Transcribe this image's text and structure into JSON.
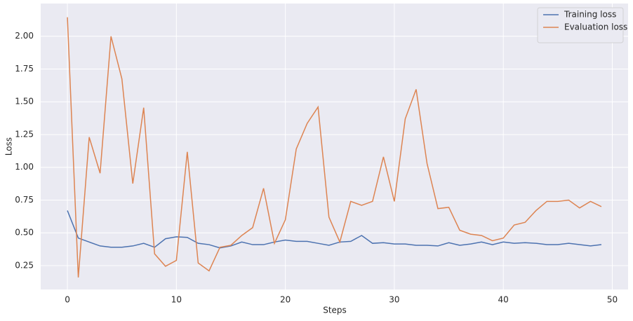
{
  "chart_data": {
    "type": "line",
    "xlabel": "Steps",
    "ylabel": "Loss",
    "x": [
      0,
      1,
      2,
      3,
      4,
      5,
      6,
      7,
      8,
      9,
      10,
      11,
      12,
      13,
      14,
      15,
      16,
      17,
      18,
      19,
      20,
      21,
      22,
      23,
      24,
      25,
      26,
      27,
      28,
      29,
      30,
      31,
      32,
      33,
      34,
      35,
      36,
      37,
      38,
      39,
      40,
      41,
      42,
      43,
      44,
      45,
      46,
      47,
      48,
      49
    ],
    "series": [
      {
        "name": "Training loss",
        "color": "#4c72b0",
        "values": [
          0.67,
          0.46,
          0.43,
          0.4,
          0.39,
          0.39,
          0.4,
          0.42,
          0.39,
          0.455,
          0.47,
          0.465,
          0.42,
          0.41,
          0.385,
          0.4,
          0.43,
          0.41,
          0.41,
          0.43,
          0.445,
          0.435,
          0.435,
          0.42,
          0.405,
          0.43,
          0.435,
          0.48,
          0.42,
          0.425,
          0.415,
          0.415,
          0.405,
          0.405,
          0.4,
          0.425,
          0.405,
          0.415,
          0.43,
          0.41,
          0.43,
          0.42,
          0.425,
          0.42,
          0.41,
          0.41,
          0.42,
          0.41,
          0.4,
          0.41
        ]
      },
      {
        "name": "Evaluation loss",
        "color": "#dd8452",
        "values": [
          2.145,
          0.16,
          1.23,
          0.955,
          2.0,
          1.675,
          0.876,
          1.455,
          0.34,
          0.245,
          0.29,
          1.118,
          0.27,
          0.21,
          0.39,
          0.405,
          0.48,
          0.54,
          0.84,
          0.42,
          0.6,
          1.14,
          1.335,
          1.46,
          0.62,
          0.43,
          0.74,
          0.71,
          0.74,
          1.08,
          0.74,
          1.37,
          1.595,
          1.03,
          0.685,
          0.695,
          0.52,
          0.49,
          0.48,
          0.44,
          0.46,
          0.56,
          0.58,
          0.67,
          0.74,
          0.74,
          0.75,
          0.69,
          0.74,
          0.7
        ]
      }
    ],
    "xlim": [
      -2.45,
      51.45
    ],
    "ylim": [
      0.068,
      2.25
    ],
    "xticks": [
      0,
      10,
      20,
      30,
      40,
      50
    ],
    "yticks": [
      {
        "value": 0.25,
        "label": "0.25"
      },
      {
        "value": 0.5,
        "label": "0.50"
      },
      {
        "value": 0.75,
        "label": "0.75"
      },
      {
        "value": 1.0,
        "label": "1.00"
      },
      {
        "value": 1.25,
        "label": "1.25"
      },
      {
        "value": 1.5,
        "label": "1.50"
      },
      {
        "value": 1.75,
        "label": "1.75"
      },
      {
        "value": 2.0,
        "label": "2.00"
      }
    ],
    "grid": true,
    "legend": "upper right"
  }
}
